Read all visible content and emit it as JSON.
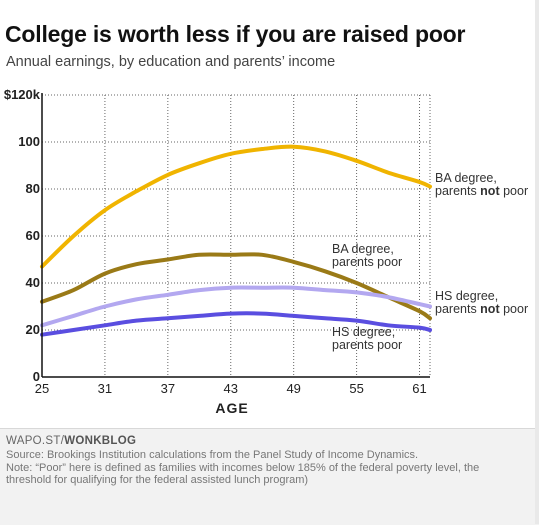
{
  "header": {
    "title": "College is worth less if you are raised poor",
    "subtitle": "Annual earnings, by education and parents’ income"
  },
  "footer": {
    "credit_prefix": "WAPO.ST/",
    "credit_brand": "WONKBLOG",
    "source": "Source: Brookings Institution calculations from the Panel Study of Income Dynamics.",
    "note_line1": "Note: “Poor” here is defined as families with incomes below 185% of the federal poverty level, the",
    "note_line2": "threshold for qualifying for the federal assisted lunch program)"
  },
  "chart_data": {
    "type": "line",
    "title": "College is worth less if you are raised poor",
    "subtitle": "Annual earnings, by education and parents’ income",
    "xlabel": "AGE",
    "ylabel": "",
    "xlim": [
      25,
      62
    ],
    "ylim": [
      0,
      120
    ],
    "x_ticks": [
      25,
      31,
      37,
      43,
      49,
      55,
      61
    ],
    "y_ticks": [
      0,
      20,
      40,
      60,
      80,
      100,
      120
    ],
    "y_tick_labels": [
      "0",
      "20",
      "40",
      "60",
      "80",
      "100",
      "$120k"
    ],
    "grid": true,
    "series": [
      {
        "name": "BA degree, parents not poor",
        "label_lines": [
          "BA degree,",
          "parents ",
          "not",
          " poor"
        ],
        "color": "#f0b400",
        "x": [
          25,
          28,
          31,
          34,
          37,
          40,
          43,
          46,
          49,
          52,
          55,
          58,
          61,
          62
        ],
        "values": [
          47,
          60,
          71,
          79,
          86,
          91,
          95,
          97,
          98,
          96,
          92,
          87,
          83,
          81
        ]
      },
      {
        "name": "BA degree, parents poor",
        "label_lines": [
          "BA degree,",
          "parents poor"
        ],
        "color": "#9a7a17",
        "x": [
          25,
          28,
          31,
          34,
          37,
          40,
          43,
          46,
          49,
          52,
          55,
          58,
          61,
          62
        ],
        "values": [
          32,
          37,
          44,
          48,
          50,
          52,
          52,
          52,
          49,
          45,
          40,
          34,
          28,
          25
        ]
      },
      {
        "name": "HS degree, parents not poor",
        "label_lines": [
          "HS degree,",
          "parents ",
          "not",
          " poor"
        ],
        "color": "#b3a8f0",
        "x": [
          25,
          28,
          31,
          34,
          37,
          40,
          43,
          46,
          49,
          52,
          55,
          58,
          61,
          62
        ],
        "values": [
          22,
          26,
          30,
          33,
          35,
          37,
          38,
          38,
          38,
          37,
          36,
          34,
          31,
          30
        ]
      },
      {
        "name": "HS degree, parents poor",
        "label_lines": [
          "HS degree,",
          "parents poor"
        ],
        "color": "#5a4ee0",
        "x": [
          25,
          28,
          31,
          34,
          37,
          40,
          43,
          46,
          49,
          52,
          55,
          58,
          61,
          62
        ],
        "values": [
          18,
          20,
          22,
          24,
          25,
          26,
          27,
          27,
          26,
          25,
          24,
          22,
          21,
          20
        ]
      }
    ]
  }
}
